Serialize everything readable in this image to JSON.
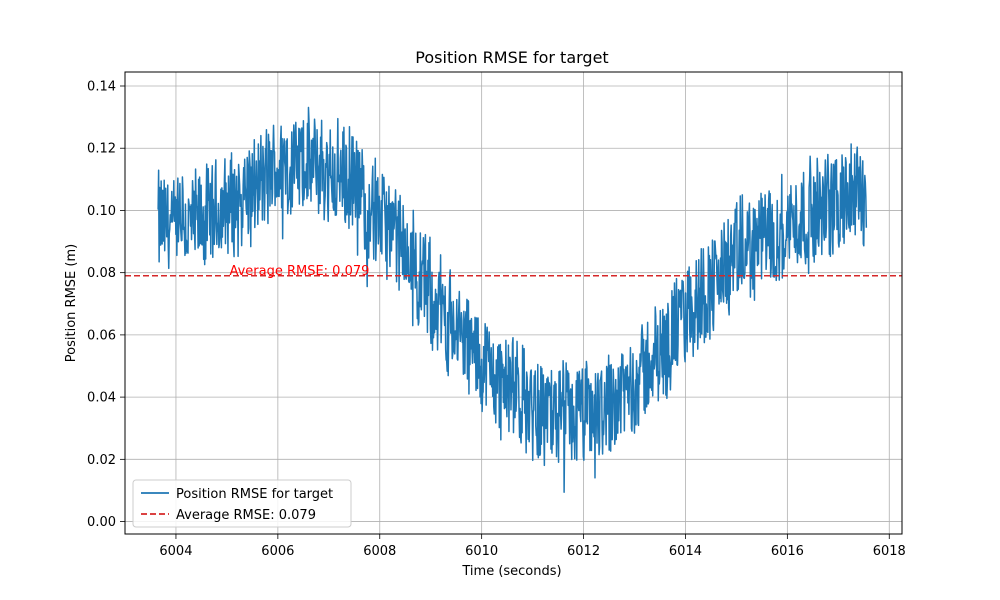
{
  "chart_data": {
    "type": "line",
    "title": "Position RMSE for target",
    "xlabel": "Time (seconds)",
    "ylabel": "Position RMSE (m)",
    "xlim": [
      6003.0,
      6018.25
    ],
    "ylim": [
      -0.004,
      0.1445
    ],
    "xticks": [
      6004,
      6006,
      6008,
      6010,
      6012,
      6014,
      6016,
      6018
    ],
    "yticks": [
      0.0,
      0.02,
      0.04,
      0.06,
      0.08,
      0.1,
      0.12,
      0.14
    ],
    "xtick_labels": [
      "6004",
      "6006",
      "6008",
      "6010",
      "6012",
      "6014",
      "6016",
      "6018"
    ],
    "ytick_labels": [
      "0.00",
      "0.02",
      "0.04",
      "0.06",
      "0.08",
      "0.10",
      "0.12",
      "0.14"
    ],
    "grid": true,
    "legend_position": "lower-left",
    "series": [
      {
        "name": "Position RMSE for target",
        "color": "#1f77b4",
        "style": "solid",
        "x_start": 6003.65,
        "x_end": 6017.55,
        "points": 1400,
        "trend_x": [
          6003.65,
          6004.0,
          6004.5,
          6005.0,
          6005.5,
          6006.0,
          6006.5,
          6007.0,
          6007.5,
          6008.0,
          6008.5,
          6009.0,
          6009.5,
          6010.0,
          6010.5,
          6011.0,
          6011.5,
          6012.0,
          6012.5,
          6013.0,
          6013.5,
          6014.0,
          6014.5,
          6015.0,
          6015.5,
          6016.0,
          6016.5,
          6017.0,
          6017.55
        ],
        "trend_y": [
          0.096,
          0.094,
          0.096,
          0.101,
          0.107,
          0.113,
          0.115,
          0.113,
          0.108,
          0.099,
          0.086,
          0.073,
          0.061,
          0.051,
          0.043,
          0.037,
          0.034,
          0.034,
          0.038,
          0.045,
          0.054,
          0.066,
          0.076,
          0.085,
          0.091,
          0.095,
          0.099,
          0.103,
          0.106
        ],
        "noise_amplitude": 0.02,
        "max_value": 0.1375,
        "min_value": 0.002
      },
      {
        "name": "Average RMSE: 0.079",
        "color": "#d62728",
        "style": "dashed",
        "y": 0.079
      }
    ],
    "annotation": {
      "text": "Average RMSE: 0.079",
      "x": 6005.05,
      "y": 0.079,
      "color": "#ff0000"
    }
  }
}
